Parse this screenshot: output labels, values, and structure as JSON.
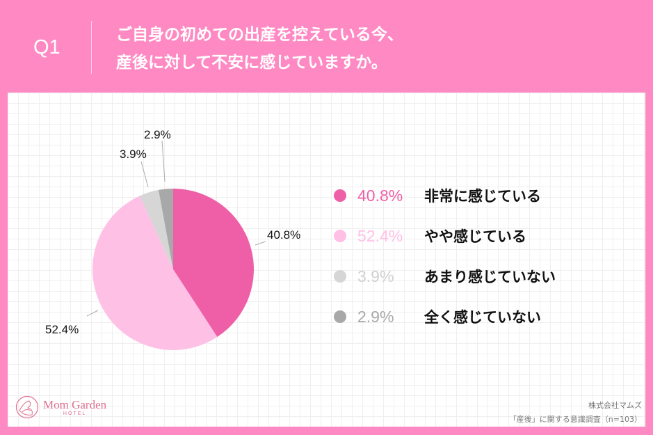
{
  "header": {
    "question_no": "Q1",
    "title_line1": "ご自身の初めての出産を控えている今、",
    "title_line2": "産後に対して不安に感じていますか。"
  },
  "chart_data": {
    "type": "pie",
    "title": "ご自身の初めての出産を控えている今、産後に対して不安に感じていますか。",
    "categories": [
      "非常に感じている",
      "やや感じている",
      "あまり感じていない",
      "全く感じていない"
    ],
    "values": [
      40.8,
      52.4,
      3.9,
      2.9
    ],
    "colors": [
      "#ef5fa7",
      "#ffc0e6",
      "#d6d6d6",
      "#a8a8a8"
    ],
    "value_labels": [
      "40.8%",
      "52.4%",
      "3.9%",
      "2.9%"
    ],
    "legend_position": "right",
    "start_angle": "12 o'clock, clockwise"
  },
  "legend": [
    {
      "pct": "40.8%",
      "label": "非常に感じている",
      "color": "#ef5fa7"
    },
    {
      "pct": "52.4%",
      "label": "やや感じている",
      "color": "#ffc0e6"
    },
    {
      "pct": "3.9%",
      "label": "あまり感じていない",
      "color": "#d6d6d6"
    },
    {
      "pct": "2.9%",
      "label": "全く感じていない",
      "color": "#a8a8a8"
    }
  ],
  "footer": {
    "logo_main": "Mom Garden",
    "logo_sub": "HOTEL",
    "company": "株式会社マムズ",
    "survey": "「産後」に関する意識調査（n=103）"
  }
}
